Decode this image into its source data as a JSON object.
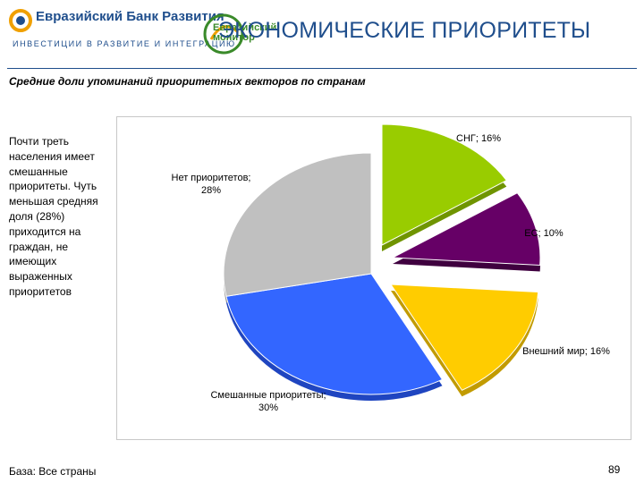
{
  "header": {
    "brand_name": "Евразийский Банк Развития",
    "brand_tagline": "ИНВЕСТИЦИИ В РАЗВИТИЕ И ИНТЕГРАЦИЮ",
    "monitor_label": "Евразийский монитор",
    "title": "ЭКОНОМИЧЕСКИЕ ПРИОРИТЕТЫ",
    "colors": {
      "brand": "#1f4e8c",
      "accent_orange": "#f0a000",
      "monitor_green": "#3a8a2a"
    }
  },
  "subtitle": "Средние доли упоминаний приоритетных векторов по странам",
  "note": "Почти треть населения имеет смешанные приоритеты. Чуть меньшая средняя доля (28%) приходится на граждан, не имеющих выраженных приоритетов",
  "footer": {
    "base": "База: Все страны",
    "page_number": "89"
  },
  "chart_data": {
    "type": "pie",
    "style": "exploded-3d",
    "slices": [
      {
        "name": "СНГ",
        "value": 16,
        "label": "СНГ; 16%",
        "color": "#99cc00",
        "side": "#6f9400"
      },
      {
        "name": "ЕС",
        "value": 10,
        "label": "ЕС; 10%",
        "color": "#660066",
        "side": "#3f003f"
      },
      {
        "name": "Внешний мир",
        "value": 16,
        "label": "Внешний мир; 16%",
        "color": "#ffcc00",
        "side": "#c29b00"
      },
      {
        "name": "Смешанные приоритеты",
        "value": 30,
        "label": "Смешанные приоритеты; 30%",
        "color": "#3366ff",
        "side": "#1f45c0"
      },
      {
        "name": "Нет приоритетов",
        "value": 28,
        "label": "Нет приоритетов; 28%",
        "color": "#c0c0c0",
        "side": "#8c8c8c"
      }
    ]
  }
}
